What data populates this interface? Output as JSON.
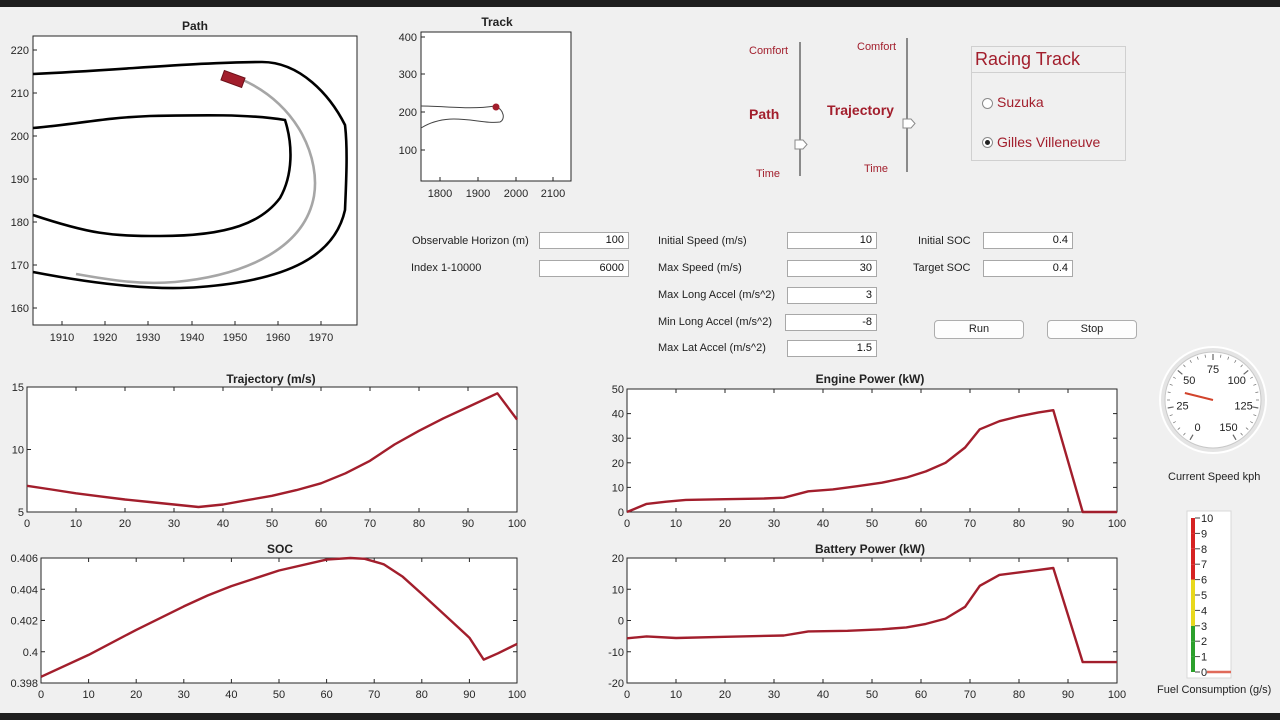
{
  "path_plot": {
    "title": "Path",
    "xticks": [
      "1910",
      "1920",
      "1930",
      "1940",
      "1950",
      "1960",
      "1970"
    ],
    "yticks": [
      "160",
      "170",
      "180",
      "190",
      "200",
      "210",
      "220"
    ]
  },
  "track_plot": {
    "title": "Track",
    "xticks": [
      "1800",
      "1900",
      "2000",
      "2100"
    ],
    "yticks": [
      "100",
      "200",
      "300",
      "400"
    ]
  },
  "sliders": {
    "path": {
      "label": "Path",
      "top": "Comfort",
      "bottom": "Time",
      "value": 0.25
    },
    "trajectory": {
      "label": "Trajectory",
      "top": "Comfort",
      "bottom": "Time",
      "value": 0.35
    }
  },
  "racing_track": {
    "title": "Racing Track",
    "options": [
      {
        "label": "Suzuka",
        "selected": false
      },
      {
        "label": "Gilles Villeneuve",
        "selected": true
      }
    ]
  },
  "params": {
    "observable_horizon": {
      "label": "Observable Horizon (m)",
      "value": "100"
    },
    "index": {
      "label": "Index 1-10000",
      "value": "6000"
    },
    "initial_speed": {
      "label": "Initial Speed (m/s)",
      "value": "10"
    },
    "max_speed": {
      "label": "Max Speed (m/s)",
      "value": "30"
    },
    "max_long_accel": {
      "label": "Max Long Accel (m/s^2)",
      "value": "3"
    },
    "min_long_accel": {
      "label": "Min Long Accel (m/s^2)",
      "value": "-8"
    },
    "max_lat_accel": {
      "label": "Max Lat Accel (m/s^2)",
      "value": "1.5"
    },
    "initial_soc": {
      "label": "Initial SOC",
      "value": "0.4"
    },
    "target_soc": {
      "label": "Target SOC",
      "value": "0.4"
    }
  },
  "buttons": {
    "run": "Run",
    "stop": "Stop"
  },
  "gauge": {
    "label": "Current Speed kph",
    "ticks": [
      "0",
      "25",
      "50",
      "75",
      "100",
      "125",
      "150"
    ],
    "value_kph": 37
  },
  "fuel": {
    "label": "Fuel Consumption (g/s)",
    "ticks": [
      "0",
      "1",
      "2",
      "3",
      "4",
      "5",
      "6",
      "7",
      "8",
      "9",
      "10"
    ],
    "value": 0
  },
  "colors": {
    "series": "#a21e2c",
    "path_line": "#a6a6a6",
    "accent": "#a21e2c"
  },
  "chart_data": [
    {
      "type": "line",
      "title": "Trajectory (m/s)",
      "xlim": [
        0,
        100
      ],
      "ylim": [
        5,
        15
      ],
      "xticks": [
        0,
        10,
        20,
        30,
        40,
        50,
        60,
        70,
        80,
        90,
        100
      ],
      "yticks": [
        5,
        10,
        15
      ],
      "x": [
        0,
        5,
        10,
        15,
        20,
        25,
        30,
        35,
        40,
        45,
        50,
        55,
        60,
        65,
        70,
        75,
        80,
        85,
        90,
        96,
        100
      ],
      "y": [
        7.1,
        6.8,
        6.5,
        6.25,
        6.0,
        5.8,
        5.6,
        5.4,
        5.6,
        5.95,
        6.3,
        6.75,
        7.3,
        8.1,
        9.1,
        10.4,
        11.5,
        12.5,
        13.4,
        14.5,
        12.4
      ]
    },
    {
      "type": "line",
      "title": "Engine Power (kW)",
      "xlim": [
        0,
        100
      ],
      "ylim": [
        0,
        50
      ],
      "xticks": [
        0,
        10,
        20,
        30,
        40,
        50,
        60,
        70,
        80,
        90,
        100
      ],
      "yticks": [
        0,
        10,
        20,
        30,
        40,
        50
      ],
      "x": [
        0,
        4,
        8,
        12,
        20,
        28,
        32,
        37,
        42,
        47,
        52,
        57,
        61,
        65,
        69,
        72,
        76,
        80,
        84,
        87,
        93,
        100
      ],
      "y": [
        0,
        3.3,
        4.2,
        4.9,
        5.2,
        5.5,
        5.8,
        8.4,
        9.2,
        10.5,
        11.9,
        14.0,
        16.5,
        20.0,
        26.2,
        33.6,
        36.9,
        38.9,
        40.5,
        41.4,
        0,
        0
      ]
    },
    {
      "type": "line",
      "title": "SOC",
      "xlim": [
        0,
        100
      ],
      "ylim": [
        0.398,
        0.406
      ],
      "xticks": [
        0,
        10,
        20,
        30,
        40,
        50,
        60,
        70,
        80,
        90,
        100
      ],
      "yticks": [
        0.398,
        0.4,
        0.402,
        0.404,
        0.406
      ],
      "x": [
        0,
        10,
        20,
        30,
        35,
        40,
        50,
        60,
        65,
        68,
        72,
        76,
        80,
        85,
        90,
        93,
        96,
        100
      ],
      "y": [
        0.3984,
        0.3998,
        0.4014,
        0.4029,
        0.4036,
        0.4042,
        0.4052,
        0.4059,
        0.406,
        0.40595,
        0.4056,
        0.4048,
        0.4037,
        0.4023,
        0.4009,
        0.3995,
        0.3999,
        0.4005
      ]
    },
    {
      "type": "line",
      "title": "Battery Power (kW)",
      "xlim": [
        0,
        100
      ],
      "ylim": [
        -20,
        20
      ],
      "xticks": [
        0,
        10,
        20,
        30,
        40,
        50,
        60,
        70,
        80,
        90,
        100
      ],
      "yticks": [
        -20,
        -10,
        0,
        10,
        20
      ],
      "x": [
        0,
        4,
        10,
        20,
        32,
        37,
        45,
        52,
        57,
        61,
        65,
        69,
        72,
        76,
        80,
        84,
        87,
        93,
        100
      ],
      "y": [
        -5.7,
        -5.1,
        -5.6,
        -5.2,
        -4.8,
        -3.5,
        -3.3,
        -2.8,
        -2.2,
        -1.1,
        0.6,
        4.4,
        11.1,
        14.6,
        15.4,
        16.2,
        16.8,
        -13.3,
        -13.3
      ]
    }
  ]
}
